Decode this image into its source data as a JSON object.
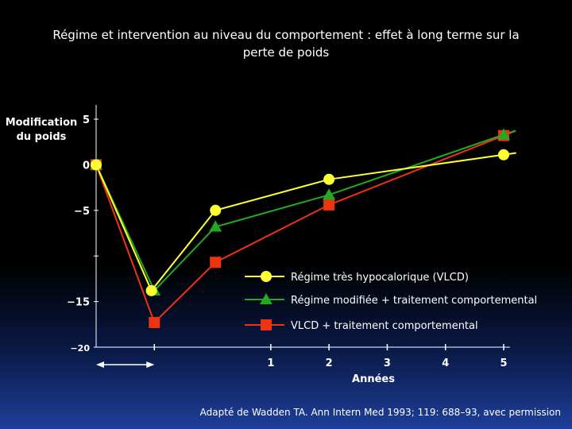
{
  "page": {
    "title_line1": "Régime et intervention au niveau du comportement : effet à long terme sur la",
    "title_line2": "perte de poids",
    "caption": "Adapté de Wadden TA. Ann Intern Med 1993; 119: 688–93, avec permission"
  },
  "chart_data": {
    "type": "line",
    "ylabel": "Modification du poids",
    "ylabel_lines": [
      "Modification",
      "du poids"
    ],
    "xlabel": "Années",
    "ylim": [
      -20,
      5
    ],
    "y_ticks": [
      {
        "value": 5,
        "label": "5"
      },
      {
        "value": 0,
        "label": "0"
      },
      {
        "value": -5,
        "label": "−5"
      },
      {
        "value": -10,
        "label": ""
      },
      {
        "value": -15,
        "label": "−15"
      },
      {
        "value": -20,
        "label": "−20"
      }
    ],
    "x_ticks": [
      {
        "value": -1,
        "label": ""
      },
      {
        "value": 1,
        "label": "1"
      },
      {
        "value": 2,
        "label": "2"
      },
      {
        "value": 3,
        "label": "3"
      },
      {
        "value": 4,
        "label": "4"
      },
      {
        "value": 5,
        "label": "5"
      }
    ],
    "xlim": [
      -2,
      5.2
    ],
    "treatment_arrow": [
      -2,
      -1
    ],
    "grid": false,
    "legend_position": "center-right",
    "series": [
      {
        "name": "Régime très hypocalorique (VLCD)",
        "color": "#ffff33",
        "marker": "circle",
        "x": [
          -2,
          -1.05,
          0.05,
          2,
          5
        ],
        "y": [
          0,
          -13.8,
          -5,
          -1.6,
          1.1
        ]
      },
      {
        "name": "Régime modifiée + traitement comportemental",
        "color": "#22aa22",
        "marker": "triangle",
        "x": [
          -2,
          -1,
          0.05,
          2,
          5
        ],
        "y": [
          0,
          -13.8,
          -6.8,
          -3.3,
          3.3
        ]
      },
      {
        "name": "VLCD + traitement comportemental",
        "color": "#ee3311",
        "marker": "square",
        "x": [
          -2,
          -1,
          0.05,
          2,
          5
        ],
        "y": [
          0,
          -17.3,
          -10.7,
          -4.4,
          3.2
        ]
      }
    ]
  }
}
